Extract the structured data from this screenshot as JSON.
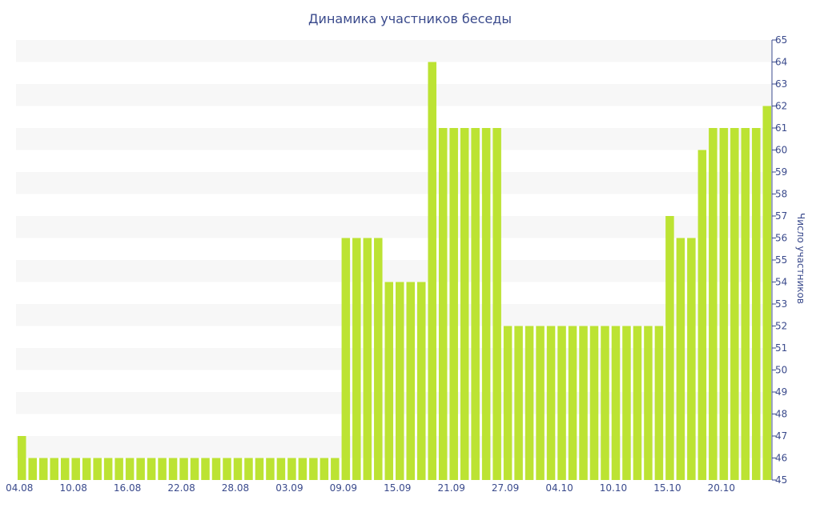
{
  "chart_data": {
    "type": "bar",
    "title": "Динамика участников беседы",
    "xlabel": "",
    "ylabel": "Число участников",
    "ylim": [
      45,
      65
    ],
    "yticks": [
      45,
      46,
      47,
      48,
      49,
      50,
      51,
      52,
      53,
      54,
      55,
      56,
      57,
      58,
      59,
      60,
      61,
      62,
      63,
      64,
      65
    ],
    "x_tick_labels": [
      "04.08",
      "10.08",
      "16.08",
      "22.08",
      "28.08",
      "03.09",
      "09.09",
      "15.09",
      "21.09",
      "27.09",
      "04.10",
      "10.10",
      "15.10",
      "20.10"
    ],
    "x_tick_every": 5,
    "grid": "horizontal bands",
    "colors": {
      "bar": "#bce333",
      "band": "#f7f7f7",
      "text": "#3a4a8c"
    },
    "values": [
      47,
      46,
      46,
      46,
      46,
      46,
      46,
      46,
      46,
      46,
      46,
      46,
      46,
      46,
      46,
      46,
      46,
      46,
      46,
      46,
      46,
      46,
      46,
      46,
      46,
      46,
      46,
      46,
      46,
      46,
      56,
      56,
      56,
      56,
      54,
      54,
      54,
      54,
      64,
      61,
      61,
      61,
      61,
      61,
      61,
      52,
      52,
      52,
      52,
      52,
      52,
      52,
      52,
      52,
      52,
      52,
      52,
      52,
      52,
      52,
      57,
      56,
      56,
      60,
      61,
      61,
      61,
      61,
      61,
      62
    ]
  }
}
